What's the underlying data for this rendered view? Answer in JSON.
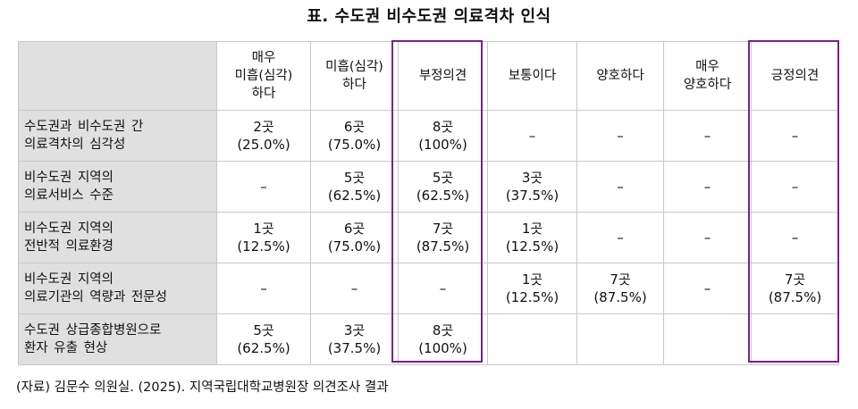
{
  "title": "표. 수도권 비수도권 의료격차 인식",
  "columns": [
    "",
    "매우\n미흡(심각)\n하다",
    "미흡(심각)\n하다",
    "부정의견",
    "보통이다",
    "양호하다",
    "매우\n양호하다",
    "긍정의견"
  ],
  "rows": [
    {
      "label": "수도권과 비수도권 간\n의료격차의 심각성",
      "cells": [
        "2곳\n(25.0%)",
        "6곳\n(75.0%)",
        "8곳\n(100%)",
        "–",
        "–",
        "–",
        "–"
      ]
    },
    {
      "label": "비수도권 지역의\n의료서비스 수준",
      "cells": [
        "–",
        "5곳\n(62.5%)",
        "5곳\n(62.5%)",
        "3곳\n(37.5%)",
        "–",
        "–",
        "–"
      ]
    },
    {
      "label": "비수도권 지역의\n전반적 의료환경",
      "cells": [
        "1곳\n(12.5%)",
        "6곳\n(75.0%)",
        "7곳\n(87.5%)",
        "1곳\n(12.5%)",
        "–",
        "–",
        "–"
      ]
    },
    {
      "label": "비수도권 지역의\n의료기관의 역량과 전문성",
      "cells": [
        "–",
        "–",
        "–",
        "1곳\n(12.5%)",
        "7곳\n(87.5%)",
        "–",
        "7곳\n(87.5%)"
      ]
    },
    {
      "label": "수도권  상급종합병원으로\n환자 유출 현상",
      "cells": [
        "5곳\n(62.5%)",
        "3곳\n(37.5%)",
        "8곳\n(100%)",
        "",
        "",
        "",
        ""
      ]
    }
  ],
  "highlight_color": "#7b1f8f",
  "source": "(자료) 김문수 의원실. (2025). 지역국립대학교병원장 의견조사 결과"
}
